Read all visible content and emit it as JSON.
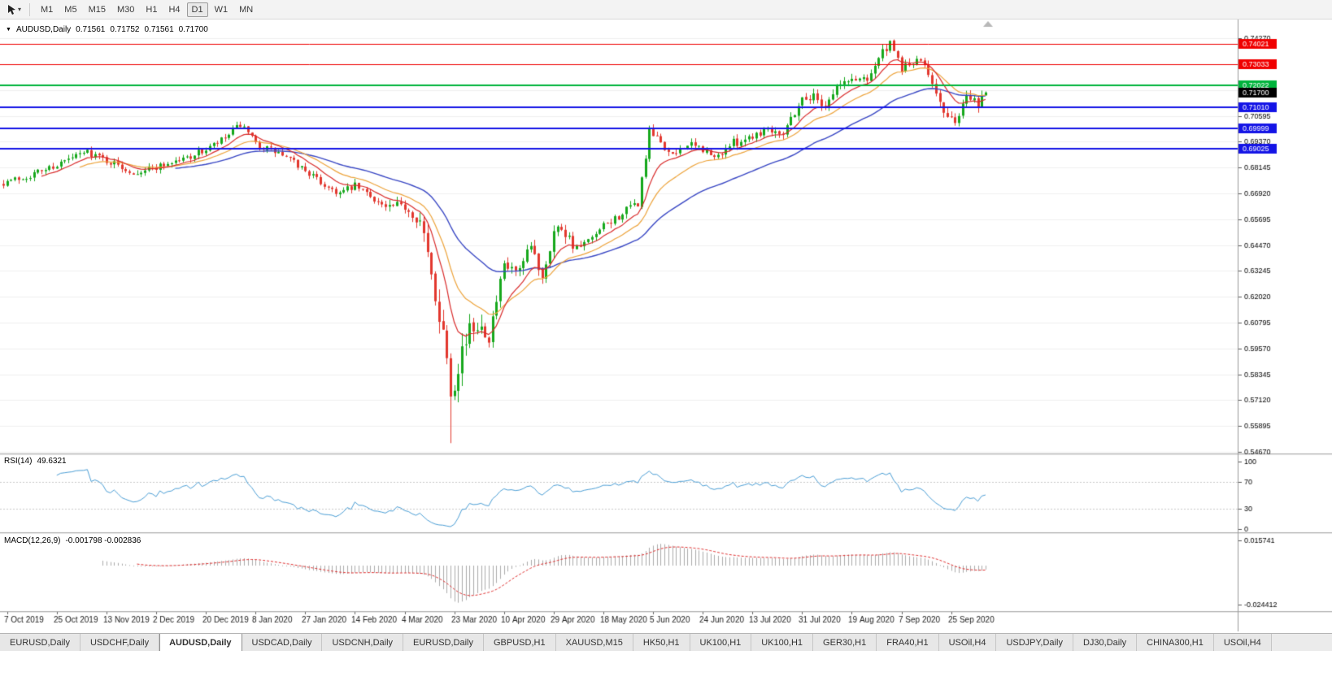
{
  "toolbar": {
    "timeframes": [
      "M1",
      "M5",
      "M15",
      "M30",
      "H1",
      "H4",
      "D1",
      "W1",
      "MN"
    ],
    "selected": "D1"
  },
  "chart_header": {
    "dropdown_glyph": "▼",
    "symbol": "AUDUSD,Daily",
    "open": "0.71561",
    "high": "0.71752",
    "low": "0.71561",
    "close": "0.71700"
  },
  "panes": {
    "rsi_title": "RSI(14)",
    "rsi_value": "49.6321",
    "macd_title": "MACD(12,26,9)",
    "macd_values": "-0.001798 -0.002836"
  },
  "tabs": {
    "active_index": 2,
    "items": [
      "EURUSD,Daily",
      "USDCHF,Daily",
      "AUDUSD,Daily",
      "USDCAD,Daily",
      "USDCNH,Daily",
      "EURUSD,Daily",
      "GBPUSD,H1",
      "XAUUSD,M15",
      "HK50,H1",
      "UK100,H1",
      "UK100,H1",
      "GER30,H1",
      "FRA40,H1",
      "USOil,H4",
      "USDJPY,Daily",
      "DJ30,Daily",
      "CHINA300,H1",
      "USOil,H4"
    ]
  },
  "chart_data": {
    "type": "candlestick",
    "symbol": "AUDUSD",
    "timeframe": "Daily",
    "ohlc_display": {
      "open": 0.71561,
      "high": 0.71752,
      "low": 0.71561,
      "close": 0.717
    },
    "current_price": 0.717,
    "price_axis": {
      "min": 0.5459,
      "max": 0.7516,
      "tick_start": 0.5467,
      "tick_step": 0.01225,
      "tick_count": 17,
      "label_decimals": 5
    },
    "x_axis": {
      "date_labels": [
        "7 Oct 2019",
        "25 Oct 2019",
        "13 Nov 2019",
        "2 Dec 2019",
        "20 Dec 2019",
        "8 Jan 2020",
        "27 Jan 2020",
        "14 Feb 2020",
        "4 Mar 2020",
        "23 Mar 2020",
        "10 Apr 2020",
        "29 Apr 2020",
        "18 May 2020",
        "5 Jun 2020",
        "24 Jun 2020",
        "13 Jul 2020",
        "31 Jul 2020",
        "19 Aug 2020",
        "7 Sep 2020",
        "25 Sep 2020"
      ],
      "first_label_candle": 1,
      "candles_per_label": 13,
      "candle_count": 258
    },
    "levels": [
      {
        "price": 0.74021,
        "color": "#f00000",
        "width": 1
      },
      {
        "price": 0.73033,
        "color": "#f00000",
        "width": 1
      },
      {
        "price": 0.72022,
        "color": "#00b43c",
        "width": 2
      },
      {
        "price": 0.7101,
        "color": "#1414e6",
        "width": 2
      },
      {
        "price": 0.69999,
        "color": "#1414e6",
        "width": 2
      },
      {
        "price": 0.69025,
        "color": "#1414e6",
        "width": 2
      }
    ],
    "candles": {
      "up_color": "#16a81c",
      "down_color": "#e2372e",
      "seed": 7,
      "anchors": [
        [
          0,
          0.6745
        ],
        [
          6,
          0.6772
        ],
        [
          14,
          0.6828
        ],
        [
          22,
          0.689
        ],
        [
          27,
          0.6848
        ],
        [
          34,
          0.6792
        ],
        [
          40,
          0.6818
        ],
        [
          47,
          0.6856
        ],
        [
          53,
          0.6898
        ],
        [
          58,
          0.6952
        ],
        [
          62,
          0.7018
        ],
        [
          66,
          0.6925
        ],
        [
          72,
          0.6882
        ],
        [
          79,
          0.6802
        ],
        [
          83,
          0.6742
        ],
        [
          88,
          0.6692
        ],
        [
          92,
          0.6726
        ],
        [
          96,
          0.6682
        ],
        [
          100,
          0.6622
        ],
        [
          105,
          0.663
        ],
        [
          109,
          0.6562
        ],
        [
          112,
          0.6295
        ],
        [
          114,
          0.6128
        ],
        [
          116,
          0.5945
        ],
        [
          117,
          0.5768
        ],
        [
          118,
          0.5812
        ],
        [
          120,
          0.5962
        ],
        [
          124,
          0.6092
        ],
        [
          127,
          0.6012
        ],
        [
          131,
          0.6342
        ],
        [
          135,
          0.6312
        ],
        [
          138,
          0.6438
        ],
        [
          141,
          0.6302
        ],
        [
          144,
          0.6512
        ],
        [
          146,
          0.6536
        ],
        [
          150,
          0.6428
        ],
        [
          154,
          0.6472
        ],
        [
          157,
          0.6532
        ],
        [
          162,
          0.6598
        ],
        [
          166,
          0.6645
        ],
        [
          169,
          0.6978
        ],
        [
          172,
          0.6935
        ],
        [
          175,
          0.6862
        ],
        [
          178,
          0.6922
        ],
        [
          183,
          0.6902
        ],
        [
          186,
          0.6855
        ],
        [
          190,
          0.6922
        ],
        [
          196,
          0.6968
        ],
        [
          200,
          0.7002
        ],
        [
          204,
          0.6985
        ],
        [
          209,
          0.7142
        ],
        [
          212,
          0.7152
        ],
        [
          215,
          0.7108
        ],
        [
          218,
          0.7198
        ],
        [
          222,
          0.7232
        ],
        [
          226,
          0.7242
        ],
        [
          230,
          0.7362
        ],
        [
          232,
          0.7392
        ],
        [
          235,
          0.7285
        ],
        [
          238,
          0.7312
        ],
        [
          241,
          0.7308
        ],
        [
          244,
          0.7182
        ],
        [
          246,
          0.7062
        ],
        [
          248,
          0.7032
        ],
        [
          250,
          0.7056
        ],
        [
          252,
          0.7158
        ],
        [
          254,
          0.7148
        ],
        [
          255,
          0.7112
        ],
        [
          256,
          0.7158
        ],
        [
          257,
          0.717
        ]
      ],
      "volatility": [
        {
          "to": 100,
          "v": 0.0038
        },
        {
          "to": 109,
          "v": 0.0055
        },
        {
          "to": 126,
          "v": 0.0125
        },
        {
          "to": 150,
          "v": 0.0068
        },
        {
          "to": 200,
          "v": 0.0046
        },
        {
          "to": 258,
          "v": 0.005
        }
      ],
      "specials": [
        {
          "i": 62,
          "high": 0.7032
        },
        {
          "i": 117,
          "low": 0.5508
        },
        {
          "i": 169,
          "high": 0.7013
        },
        {
          "i": 232,
          "high": 0.7413
        }
      ],
      "last": {
        "o": 0.71561,
        "h": 0.71752,
        "l": 0.71561,
        "c": 0.717
      }
    },
    "moving_averages": [
      {
        "period": 45,
        "color": "#3947c4",
        "width": 1.4
      },
      {
        "period": 20,
        "color": "#eda33a",
        "width": 1.2
      },
      {
        "period": 10,
        "color": "#d92b2b",
        "width": 1.2
      }
    ],
    "rsi": {
      "period": 14,
      "current": 49.6321,
      "color": "#4c9fd6",
      "levels": [
        70,
        30
      ],
      "scale_labels": [
        100,
        70,
        30,
        0
      ]
    },
    "macd": {
      "fast": 12,
      "slow": 26,
      "signal_period": 9,
      "current_main": -0.001798,
      "current_signal": -0.002836,
      "hist_color": "#ababab",
      "signal_color": "#e03030",
      "scale_max": 0.015741,
      "scale_min": -0.024412
    }
  }
}
